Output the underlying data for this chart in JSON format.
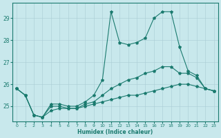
{
  "xlabel": "Humidex (Indice chaleur)",
  "bg_color": "#c8e8ec",
  "grid_color": "#a8cdd4",
  "line_color": "#1a7a6e",
  "xlim": [
    -0.5,
    23.5
  ],
  "ylim": [
    24.3,
    29.7
  ],
  "yticks": [
    25,
    26,
    27,
    28,
    29
  ],
  "xticks": [
    0,
    1,
    2,
    3,
    4,
    5,
    6,
    7,
    8,
    9,
    10,
    11,
    12,
    13,
    14,
    15,
    16,
    17,
    18,
    19,
    20,
    21,
    22,
    23
  ],
  "line1_x": [
    0,
    1,
    2,
    3,
    4,
    5,
    6,
    7,
    8,
    9,
    10,
    11,
    12,
    13,
    14,
    15,
    16,
    17,
    18,
    19,
    20,
    21,
    22,
    23
  ],
  "line1_y": [
    25.8,
    25.5,
    24.6,
    24.5,
    25.1,
    25.1,
    25.0,
    25.0,
    25.2,
    25.5,
    26.2,
    29.3,
    27.9,
    27.8,
    27.9,
    28.1,
    29.0,
    29.3,
    29.3,
    27.7,
    26.6,
    26.4,
    25.8,
    25.7
  ],
  "line2_x": [
    0,
    1,
    2,
    3,
    4,
    5,
    6,
    7,
    8,
    9,
    10,
    11,
    12,
    13,
    14,
    15,
    16,
    17,
    18,
    19,
    20,
    21,
    22,
    23
  ],
  "line2_y": [
    25.8,
    25.5,
    24.6,
    24.5,
    25.0,
    25.0,
    24.9,
    24.9,
    25.1,
    25.2,
    25.5,
    25.8,
    26.0,
    26.2,
    26.3,
    26.5,
    26.6,
    26.8,
    26.8,
    26.5,
    26.5,
    26.3,
    25.8,
    25.7
  ],
  "line3_x": [
    0,
    1,
    2,
    3,
    4,
    5,
    6,
    7,
    8,
    9,
    10,
    11,
    12,
    13,
    14,
    15,
    16,
    17,
    18,
    19,
    20,
    21,
    22,
    23
  ],
  "line3_y": [
    25.8,
    25.5,
    24.6,
    24.5,
    24.8,
    24.9,
    24.9,
    24.9,
    25.0,
    25.1,
    25.2,
    25.3,
    25.4,
    25.5,
    25.5,
    25.6,
    25.7,
    25.8,
    25.9,
    26.0,
    26.0,
    25.9,
    25.8,
    25.7
  ]
}
